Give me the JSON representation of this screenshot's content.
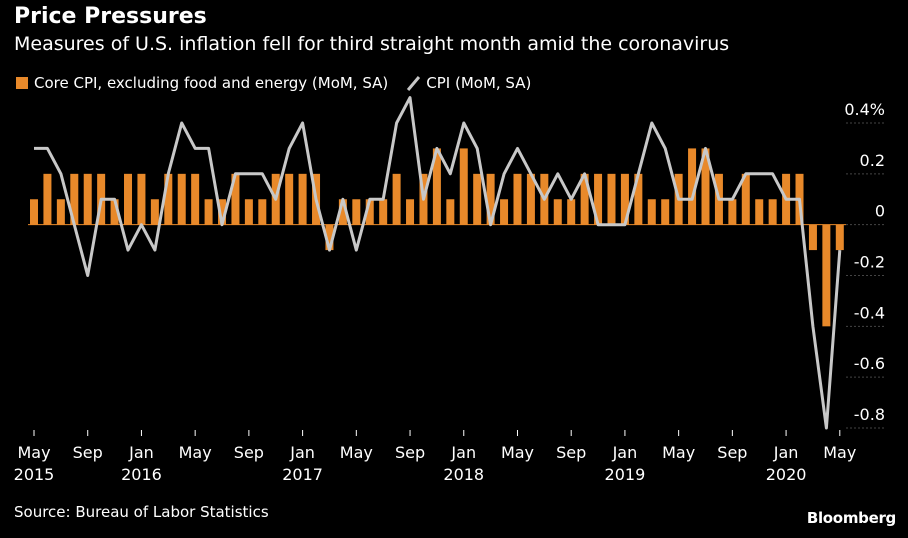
{
  "title": "Price Pressures",
  "subtitle": "Measures of U.S. inflation fell for third straight month amid the coronavirus",
  "legend": {
    "bar_label": "Core CPI, excluding food and energy (MoM, SA)",
    "line_label": "CPI (MoM, SA)"
  },
  "source": "Source: Bureau of Labor Statistics",
  "brand": "Bloomberg",
  "colors": {
    "bar": "#e8892a",
    "line": "#c8c8c8",
    "background": "#000000",
    "grid": "#444444"
  },
  "chart_data": {
    "type": "bar",
    "x": [
      "2015-05",
      "2015-06",
      "2015-07",
      "2015-08",
      "2015-09",
      "2015-10",
      "2015-11",
      "2015-12",
      "2016-01",
      "2016-02",
      "2016-03",
      "2016-04",
      "2016-05",
      "2016-06",
      "2016-07",
      "2016-08",
      "2016-09",
      "2016-10",
      "2016-11",
      "2016-12",
      "2017-01",
      "2017-02",
      "2017-03",
      "2017-04",
      "2017-05",
      "2017-06",
      "2017-07",
      "2017-08",
      "2017-09",
      "2017-10",
      "2017-11",
      "2017-12",
      "2018-01",
      "2018-02",
      "2018-03",
      "2018-04",
      "2018-05",
      "2018-06",
      "2018-07",
      "2018-08",
      "2018-09",
      "2018-10",
      "2018-11",
      "2018-12",
      "2019-01",
      "2019-02",
      "2019-03",
      "2019-04",
      "2019-05",
      "2019-06",
      "2019-07",
      "2019-08",
      "2019-09",
      "2019-10",
      "2019-11",
      "2019-12",
      "2020-01",
      "2020-02",
      "2020-03",
      "2020-04",
      "2020-05"
    ],
    "series": [
      {
        "name": "Core CPI, excluding food and energy (MoM, SA)",
        "type": "bar",
        "values": [
          0.1,
          0.2,
          0.1,
          0.2,
          0.2,
          0.2,
          0.1,
          0.2,
          0.2,
          0.1,
          0.2,
          0.2,
          0.2,
          0.1,
          0.1,
          0.2,
          0.1,
          0.1,
          0.2,
          0.2,
          0.2,
          0.2,
          -0.1,
          0.1,
          0.1,
          0.1,
          0.1,
          0.2,
          0.1,
          0.2,
          0.3,
          0.1,
          0.3,
          0.2,
          0.2,
          0.1,
          0.2,
          0.2,
          0.2,
          0.1,
          0.1,
          0.2,
          0.2,
          0.2,
          0.2,
          0.2,
          0.1,
          0.1,
          0.2,
          0.3,
          0.3,
          0.2,
          0.1,
          0.2,
          0.1,
          0.1,
          0.2,
          0.2,
          -0.1,
          -0.4,
          -0.1
        ]
      },
      {
        "name": "CPI (MoM, SA)",
        "type": "line",
        "values": [
          0.3,
          0.3,
          0.2,
          0.0,
          -0.2,
          0.1,
          0.1,
          -0.1,
          0.0,
          -0.1,
          0.2,
          0.4,
          0.3,
          0.3,
          0.0,
          0.2,
          0.2,
          0.2,
          0.1,
          0.3,
          0.4,
          0.1,
          -0.1,
          0.1,
          -0.1,
          0.1,
          0.1,
          0.4,
          0.5,
          0.1,
          0.3,
          0.2,
          0.4,
          0.3,
          0.0,
          0.2,
          0.3,
          0.2,
          0.1,
          0.2,
          0.1,
          0.2,
          0.0,
          0.0,
          0.0,
          0.2,
          0.4,
          0.3,
          0.1,
          0.1,
          0.3,
          0.1,
          0.1,
          0.2,
          0.2,
          0.2,
          0.1,
          0.1,
          -0.4,
          -0.8,
          -0.1
        ]
      }
    ],
    "x_ticks": [
      {
        "label": "May",
        "sub": "2015",
        "index": 0
      },
      {
        "label": "Sep",
        "sub": "",
        "index": 4
      },
      {
        "label": "Jan",
        "sub": "2016",
        "index": 8
      },
      {
        "label": "May",
        "sub": "",
        "index": 12
      },
      {
        "label": "Sep",
        "sub": "",
        "index": 16
      },
      {
        "label": "Jan",
        "sub": "2017",
        "index": 20
      },
      {
        "label": "May",
        "sub": "",
        "index": 24
      },
      {
        "label": "Sep",
        "sub": "",
        "index": 28
      },
      {
        "label": "Jan",
        "sub": "2018",
        "index": 32
      },
      {
        "label": "May",
        "sub": "",
        "index": 36
      },
      {
        "label": "Sep",
        "sub": "",
        "index": 40
      },
      {
        "label": "Jan",
        "sub": "2019",
        "index": 44
      },
      {
        "label": "May",
        "sub": "",
        "index": 48
      },
      {
        "label": "Sep",
        "sub": "",
        "index": 52
      },
      {
        "label": "Jan",
        "sub": "2020",
        "index": 56
      },
      {
        "label": "May",
        "sub": "",
        "index": 60
      }
    ],
    "y_ticks": [
      {
        "value": 0.4,
        "label": "0.4%"
      },
      {
        "value": 0.2,
        "label": "0.2"
      },
      {
        "value": 0.0,
        "label": "0"
      },
      {
        "value": -0.2,
        "label": "-0.2"
      },
      {
        "value": -0.4,
        "label": "-0.4"
      },
      {
        "value": -0.6,
        "label": "-0.6"
      },
      {
        "value": -0.8,
        "label": "-0.8"
      }
    ],
    "ylim": [
      -0.8,
      0.4
    ],
    "y_axis_side": "right",
    "grid": true,
    "legend_position": "top-left"
  }
}
